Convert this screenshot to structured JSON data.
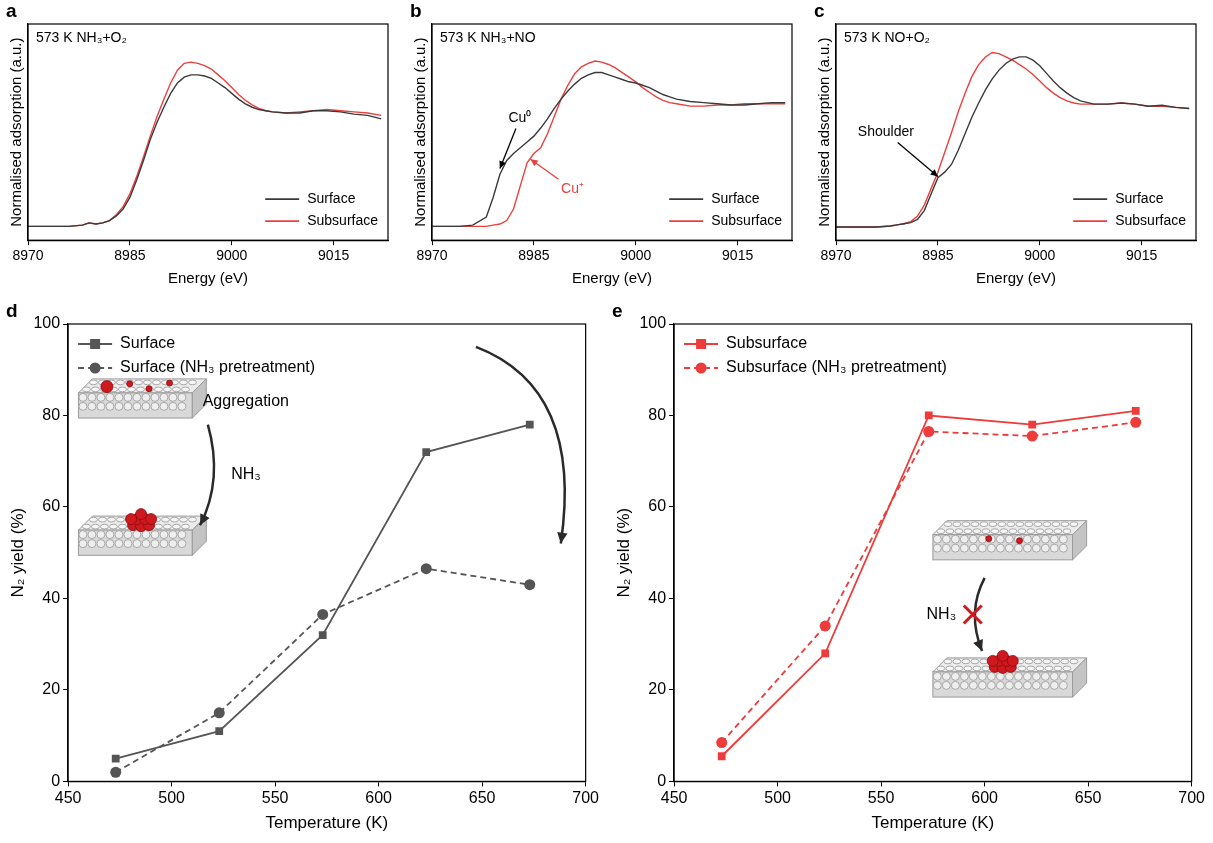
{
  "chart_data": [
    {
      "type": "line",
      "panel": "a",
      "title": "573 K NH₃+O₂",
      "x_label": "Energy (eV)",
      "y_label": "Normalised adsorption (a.u.)",
      "x": [
        8970,
        8972,
        8974,
        8976,
        8978,
        8979,
        8980,
        8981,
        8982,
        8983,
        8984,
        8985,
        8986,
        8987,
        8988,
        8989,
        8990,
        8991,
        8992,
        8993,
        8994,
        8995,
        8996,
        8997,
        8998,
        8999,
        9000,
        9001,
        9002,
        9003,
        9004,
        9005,
        9006,
        9008,
        9010,
        9012,
        9014,
        9016,
        9018,
        9020,
        9022
      ],
      "series": [
        {
          "name": "Surface",
          "color": "#3a3a3a",
          "marker": "none",
          "line_style": "solid",
          "values": [
            0,
            0,
            0,
            0,
            0.01,
            0.03,
            0.02,
            0.03,
            0.05,
            0.09,
            0.15,
            0.25,
            0.4,
            0.57,
            0.75,
            0.9,
            1.03,
            1.15,
            1.24,
            1.29,
            1.31,
            1.31,
            1.3,
            1.28,
            1.24,
            1.2,
            1.15,
            1.1,
            1.06,
            1.03,
            1.01,
            1.0,
            0.99,
            0.98,
            0.98,
            1.0,
            1.0,
            0.99,
            0.97,
            0.96,
            0.93
          ]
        },
        {
          "name": "Subsurface",
          "color": "#e8413e",
          "marker": "none",
          "line_style": "solid",
          "values": [
            0,
            0,
            0,
            0,
            0.01,
            0.03,
            0.02,
            0.03,
            0.05,
            0.1,
            0.17,
            0.28,
            0.43,
            0.6,
            0.78,
            0.95,
            1.1,
            1.24,
            1.35,
            1.41,
            1.42,
            1.41,
            1.39,
            1.36,
            1.31,
            1.26,
            1.2,
            1.14,
            1.09,
            1.05,
            1.02,
            1.0,
            0.99,
            0.98,
            0.99,
            1.0,
            1.01,
            1.0,
            0.99,
            0.98,
            0.96
          ]
        }
      ],
      "xlim": [
        8970,
        9023
      ],
      "xticks": [
        8970,
        8985,
        9000,
        9015
      ],
      "ylim": [
        -0.12,
        1.75
      ],
      "tick_labels": "x",
      "grid": false,
      "legend": "lower right",
      "annotations": []
    },
    {
      "type": "line",
      "panel": "b",
      "title": "573 K NH₃+NO",
      "x_label": "Energy (eV)",
      "y_label": "Normalised adsorption (a.u.)",
      "x": [
        8970,
        8972,
        8974,
        8976,
        8978,
        8979,
        8980,
        8981,
        8982,
        8983,
        8984,
        8985,
        8986,
        8987,
        8988,
        8989,
        8990,
        8991,
        8992,
        8993,
        8994,
        8995,
        8996,
        8997,
        8998,
        8999,
        9000,
        9001,
        9002,
        9003,
        9004,
        9005,
        9006,
        9008,
        9010,
        9012,
        9014,
        9016,
        9018,
        9020,
        9022
      ],
      "series": [
        {
          "name": "Surface",
          "color": "#3a3a3a",
          "marker": "none",
          "line_style": "solid",
          "values": [
            0,
            0,
            0,
            0.01,
            0.08,
            0.25,
            0.45,
            0.57,
            0.63,
            0.68,
            0.73,
            0.78,
            0.85,
            0.93,
            1.02,
            1.1,
            1.17,
            1.23,
            1.28,
            1.31,
            1.33,
            1.33,
            1.31,
            1.29,
            1.27,
            1.25,
            1.24,
            1.22,
            1.2,
            1.17,
            1.14,
            1.12,
            1.1,
            1.08,
            1.07,
            1.06,
            1.05,
            1.05,
            1.06,
            1.07,
            1.07
          ]
        },
        {
          "name": "Subsurface",
          "color": "#e8413e",
          "marker": "none",
          "line_style": "solid",
          "values": [
            0,
            0,
            0,
            0,
            0,
            0.01,
            0.02,
            0.05,
            0.15,
            0.35,
            0.55,
            0.63,
            0.68,
            0.8,
            0.95,
            1.1,
            1.22,
            1.32,
            1.38,
            1.41,
            1.43,
            1.42,
            1.4,
            1.37,
            1.33,
            1.29,
            1.25,
            1.2,
            1.16,
            1.12,
            1.09,
            1.07,
            1.06,
            1.04,
            1.04,
            1.05,
            1.05,
            1.06,
            1.06,
            1.06,
            1.06
          ]
        }
      ],
      "xlim": [
        8970,
        9023
      ],
      "xticks": [
        8970,
        8985,
        9000,
        9015
      ],
      "ylim": [
        -0.12,
        1.75
      ],
      "tick_labels": "x",
      "grid": false,
      "legend": "lower right",
      "annotations": [
        {
          "text": "Cu⁰",
          "point": [
            8980,
            0.5
          ],
          "color": "#000000"
        },
        {
          "text": "Cu⁺",
          "point": [
            8984.5,
            0.58
          ],
          "color": "#e8413e"
        }
      ]
    },
    {
      "type": "line",
      "panel": "c",
      "title": "573 K NO+O₂",
      "x_label": "Energy (eV)",
      "y_label": "Normalised adsorption (a.u.)",
      "x": [
        8970,
        8972,
        8974,
        8976,
        8978,
        8979,
        8980,
        8981,
        8982,
        8983,
        8984,
        8985,
        8986,
        8987,
        8988,
        8989,
        8990,
        8991,
        8992,
        8993,
        8994,
        8995,
        8996,
        8997,
        8998,
        8999,
        9000,
        9001,
        9002,
        9003,
        9004,
        9005,
        9006,
        9008,
        9010,
        9012,
        9014,
        9016,
        9018,
        9020,
        9022
      ],
      "series": [
        {
          "name": "Surface",
          "color": "#3a3a3a",
          "marker": "none",
          "line_style": "solid",
          "values": [
            0,
            0,
            0,
            0,
            0.01,
            0.02,
            0.03,
            0.04,
            0.07,
            0.15,
            0.3,
            0.45,
            0.5,
            0.57,
            0.7,
            0.85,
            1.0,
            1.13,
            1.25,
            1.35,
            1.43,
            1.49,
            1.53,
            1.55,
            1.55,
            1.52,
            1.47,
            1.4,
            1.33,
            1.27,
            1.22,
            1.18,
            1.15,
            1.12,
            1.12,
            1.13,
            1.12,
            1.1,
            1.11,
            1.09,
            1.08
          ]
        },
        {
          "name": "Subsurface",
          "color": "#e8413e",
          "marker": "none",
          "line_style": "solid",
          "values": [
            0,
            0,
            0,
            0,
            0.01,
            0.02,
            0.03,
            0.05,
            0.1,
            0.2,
            0.35,
            0.5,
            0.68,
            0.86,
            1.05,
            1.22,
            1.37,
            1.48,
            1.55,
            1.59,
            1.58,
            1.55,
            1.52,
            1.48,
            1.44,
            1.39,
            1.33,
            1.27,
            1.22,
            1.18,
            1.15,
            1.13,
            1.12,
            1.12,
            1.12,
            1.13,
            1.12,
            1.1,
            1.1,
            1.09,
            1.08
          ]
        }
      ],
      "xlim": [
        8970,
        9023
      ],
      "xticks": [
        8970,
        8985,
        9000,
        9015
      ],
      "ylim": [
        -0.12,
        1.85
      ],
      "tick_labels": "x",
      "grid": false,
      "legend": "lower right",
      "annotations": [
        {
          "text": "Shoulder",
          "point": [
            8985,
            0.46
          ],
          "color": "#000000"
        }
      ]
    },
    {
      "type": "line",
      "panel": "d",
      "x_label": "Temperature (K)",
      "y_label": "N₂ yield (%)",
      "x": [
        473,
        523,
        573,
        623,
        673
      ],
      "series": [
        {
          "name": "Surface",
          "color": "#555555",
          "marker": "square",
          "line_style": "solid",
          "values": [
            5,
            11,
            32,
            72,
            78
          ]
        },
        {
          "name": "Surface (NH₃ pretreatment)",
          "color": "#555555",
          "marker": "circle",
          "line_style": "dashed",
          "values": [
            2,
            15,
            36.5,
            46.5,
            43
          ]
        }
      ],
      "xlim": [
        450,
        700
      ],
      "xticks": [
        450,
        500,
        550,
        600,
        650,
        700
      ],
      "ylim": [
        0,
        100
      ],
      "yticks": [
        0,
        20,
        40,
        60,
        80,
        100
      ],
      "grid": false,
      "legend": "upper left",
      "annotations": [
        {
          "text": "Aggregation"
        },
        {
          "text": "NH₃"
        }
      ]
    },
    {
      "type": "line",
      "panel": "e",
      "x_label": "Temperature (K)",
      "y_label": "N₂ yield (%)",
      "x": [
        473,
        523,
        573,
        623,
        673
      ],
      "series": [
        {
          "name": "Subsurface",
          "color": "#ee3b3b",
          "marker": "square",
          "line_style": "solid",
          "values": [
            5.5,
            28,
            80,
            78,
            81
          ]
        },
        {
          "name": "Subsurface (NH₃ pretreatment)",
          "color": "#ee3b3b",
          "marker": "circle",
          "line_style": "dashed",
          "values": [
            8.5,
            34,
            76.5,
            75.5,
            78.5
          ]
        }
      ],
      "xlim": [
        450,
        700
      ],
      "xticks": [
        450,
        500,
        550,
        600,
        650,
        700
      ],
      "ylim": [
        0,
        100
      ],
      "yticks": [
        0,
        20,
        40,
        60,
        80,
        100
      ],
      "grid": false,
      "legend": "upper left",
      "annotations": [
        {
          "text": "NH₃"
        }
      ]
    }
  ]
}
